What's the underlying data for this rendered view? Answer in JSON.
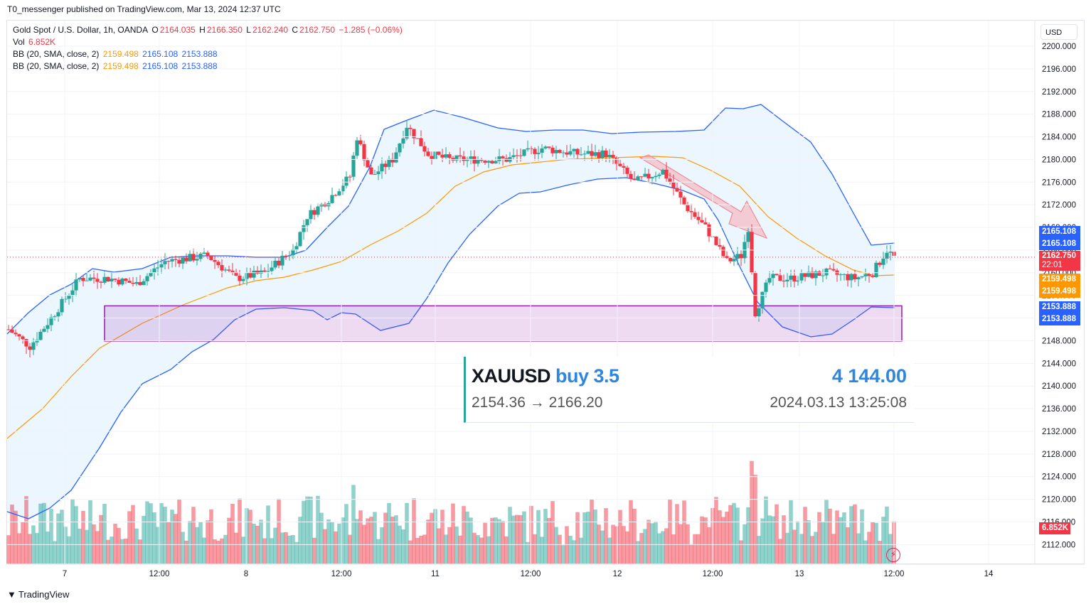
{
  "header": {
    "published": "T0_messenger published on TradingView.com, Mar 13, 2024 12:37 UTC"
  },
  "legend": {
    "symbol": "Gold Spot / U.S. Dollar, 1h, OANDA",
    "o_label": "O",
    "o": "2164.035",
    "h_label": "H",
    "h": "2166.350",
    "l_label": "L",
    "l": "2162.240",
    "c_label": "C",
    "c": "2162.750",
    "change": "−1.285 (−0.06%)",
    "vol_label": "Vol",
    "vol": "6.852K",
    "bb1_label": "BB (20, SMA, close, 2)",
    "bb1_basis": "2159.498",
    "bb1_upper": "2165.108",
    "bb1_lower": "2153.888",
    "bb2_label": "BB (20, SMA, close, 2)",
    "bb2_basis": "2159.498",
    "bb2_upper": "2165.108",
    "bb2_lower": "2153.888"
  },
  "currency_button": "USD",
  "price_axis": {
    "ticks": [
      "2200.000",
      "2196.000",
      "2192.000",
      "2188.000",
      "2184.000",
      "2180.000",
      "2176.000",
      "2172.000",
      "2168.000",
      "2164.000",
      "2160.000",
      "2156.000",
      "2152.000",
      "2148.000",
      "2144.000",
      "2140.000",
      "2136.000",
      "2132.000",
      "2128.000",
      "2124.000",
      "2120.000",
      "2116.000",
      "2112.000"
    ],
    "tags": {
      "upper1": "2165.108",
      "upper2": "2165.108",
      "last_price": "2162.750",
      "countdown": "22:01",
      "basis1": "2159.498",
      "basis2": "2159.498",
      "lower1": "2153.888",
      "lower2": "2153.888",
      "volume": "6.852K"
    }
  },
  "time_axis": {
    "ticks": [
      "7",
      "12:00",
      "8",
      "12:00",
      "11",
      "12:00",
      "12",
      "12:00",
      "13",
      "12:00",
      "14"
    ]
  },
  "trade_card": {
    "symbol": "XAUUSD",
    "side": "buy 3.5",
    "profit": "4 144.00",
    "prices": "2154.36 → 2166.20",
    "time": "2024.03.13 13:25:08"
  },
  "footer": {
    "logo": "TradingView"
  },
  "colors": {
    "up": "#26a69a",
    "down": "#f23645",
    "band": "#2962ff",
    "basis": "#ff9800",
    "zone": "#9c27b0"
  }
}
